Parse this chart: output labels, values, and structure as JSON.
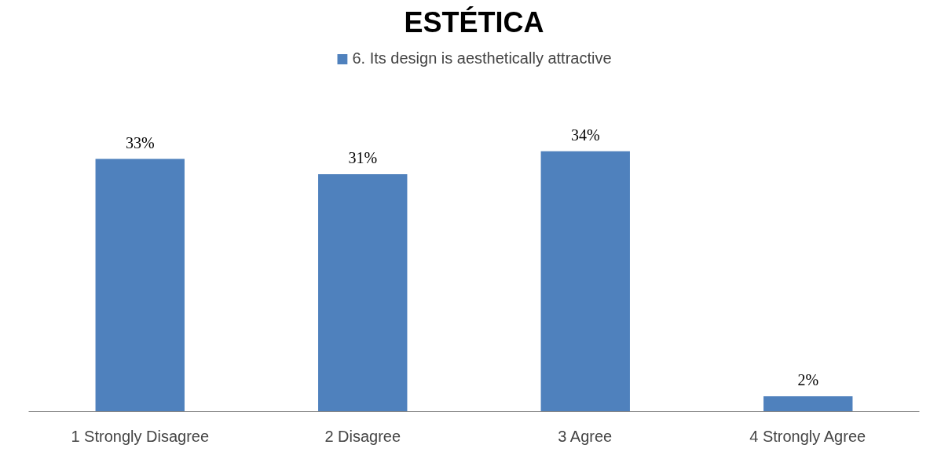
{
  "chart_data": {
    "type": "bar",
    "title": "ESTÉTICA",
    "categories": [
      "1 Strongly Disagree",
      "2 Disagree",
      "3 Agree",
      "4 Strongly Agree"
    ],
    "series": [
      {
        "name": "6. Its design is aesthetically attractive",
        "color": "#4f81bd",
        "values": [
          33,
          31,
          34,
          2
        ],
        "value_labels": [
          "33%",
          "31%",
          "34%",
          "2%"
        ]
      }
    ],
    "legend": "top"
  }
}
